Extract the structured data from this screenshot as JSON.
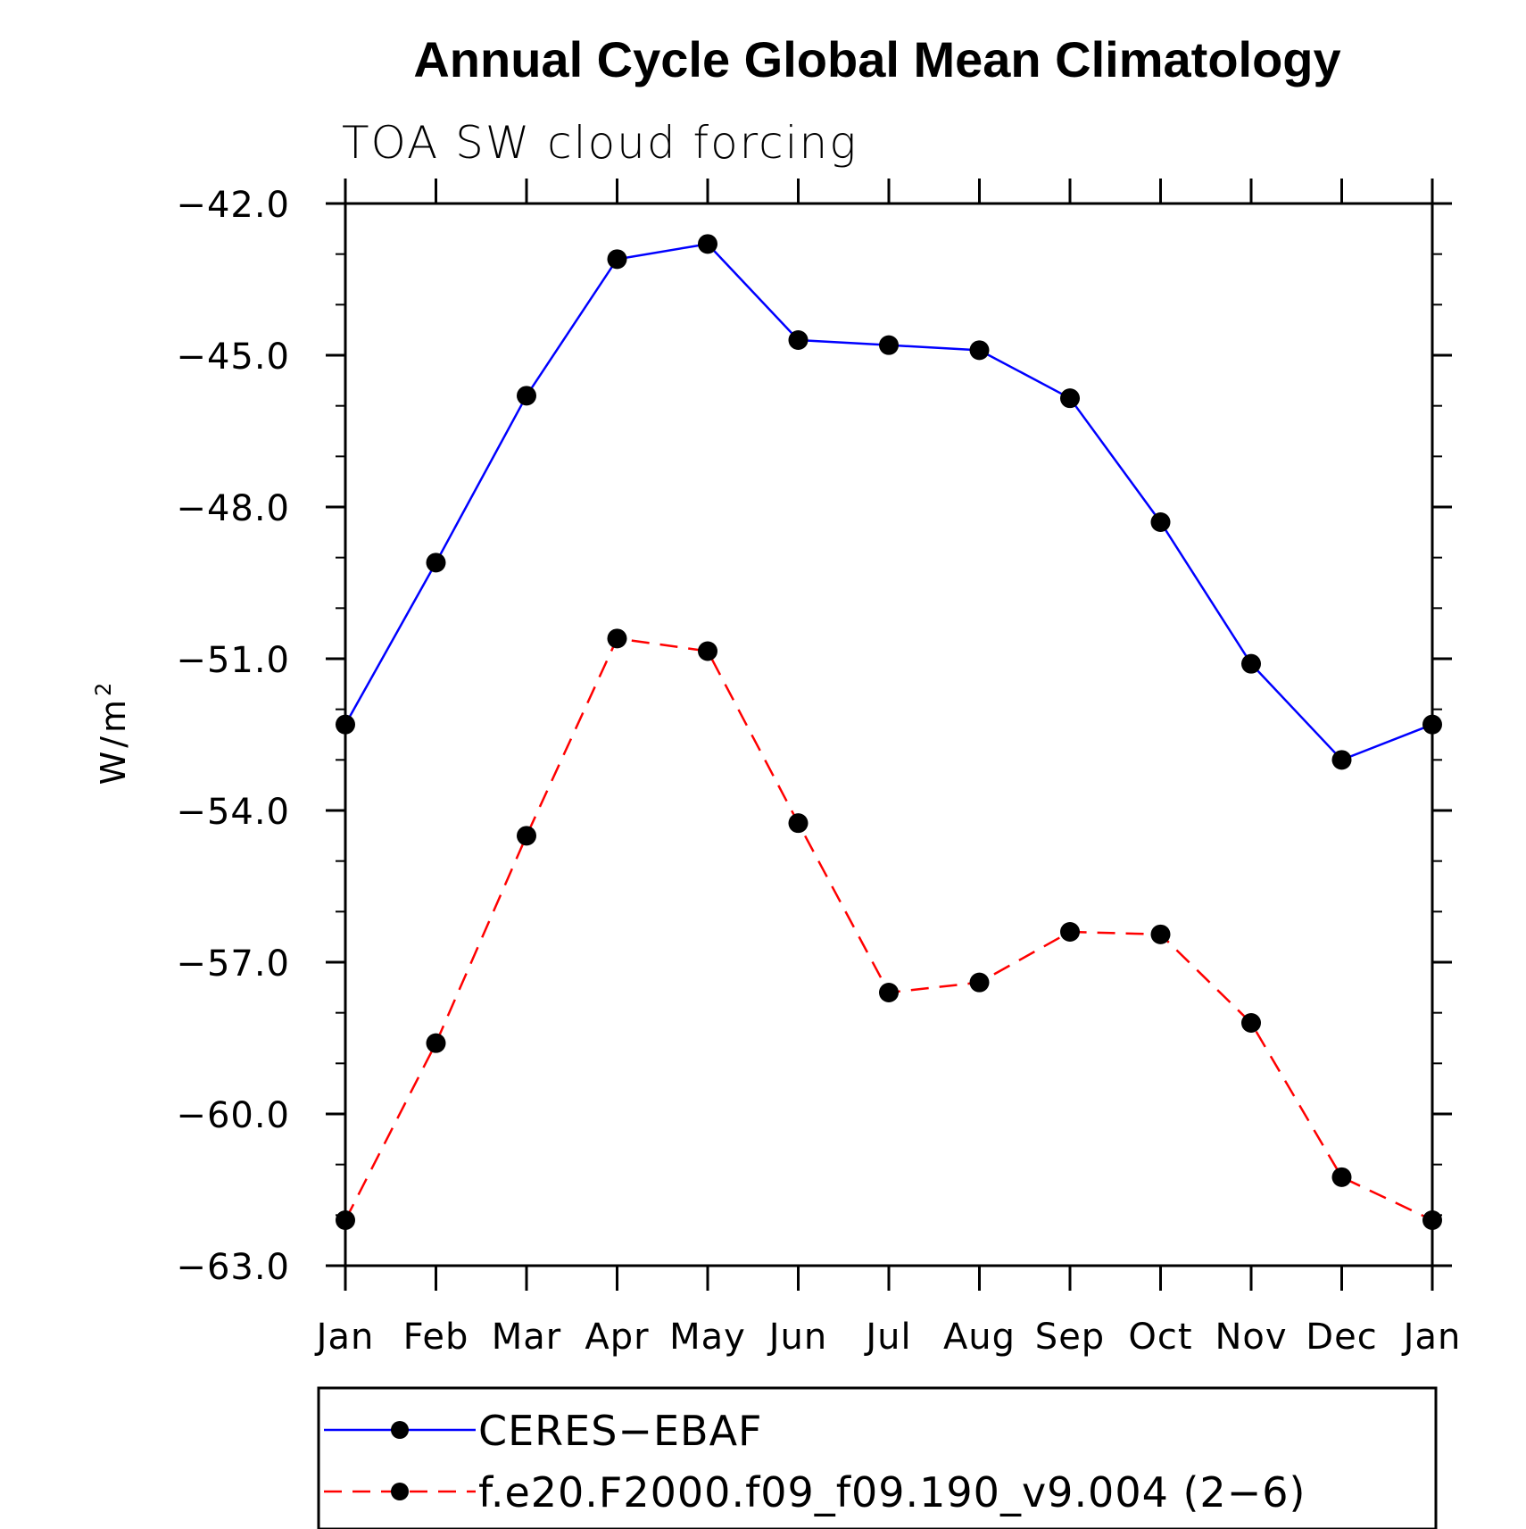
{
  "chart_data": {
    "type": "line",
    "title": "Annual Cycle Global Mean Climatology",
    "subtitle": "TOA SW cloud forcing",
    "ylabel": "W/m",
    "ylabel_superscript": "2",
    "xlabel": "",
    "categories": [
      "Jan",
      "Feb",
      "Mar",
      "Apr",
      "May",
      "Jun",
      "Jul",
      "Aug",
      "Sep",
      "Oct",
      "Nov",
      "Dec",
      "Jan"
    ],
    "ylim": [
      -63.0,
      -42.0
    ],
    "yticks": [
      -42.0,
      -45.0,
      -48.0,
      -51.0,
      -54.0,
      -57.0,
      -60.0,
      -63.0
    ],
    "ytick_labels": [
      "−42.0",
      "−45.0",
      "−48.0",
      "−51.0",
      "−54.0",
      "−57.0",
      "−60.0",
      "−63.0"
    ],
    "grid": false,
    "legend_position": "bottom",
    "series": [
      {
        "name": "CERES−EBAF",
        "color": "#0000ff",
        "line_style": "solid",
        "marker": "filled-circle",
        "values": [
          -52.3,
          -49.1,
          -45.8,
          -43.1,
          -42.8,
          -44.7,
          -44.8,
          -44.9,
          -45.85,
          -48.3,
          -51.1,
          -53.0,
          -52.3
        ]
      },
      {
        "name": "f.e20.F2000.f09_f09.190_v9.004 (2−6)",
        "color": "#ff0000",
        "line_style": "dashed",
        "marker": "filled-circle",
        "values": [
          -62.1,
          -58.6,
          -54.5,
          -50.6,
          -50.85,
          -54.25,
          -57.6,
          -57.4,
          -56.4,
          -56.45,
          -58.2,
          -61.25,
          -62.1
        ]
      }
    ]
  }
}
